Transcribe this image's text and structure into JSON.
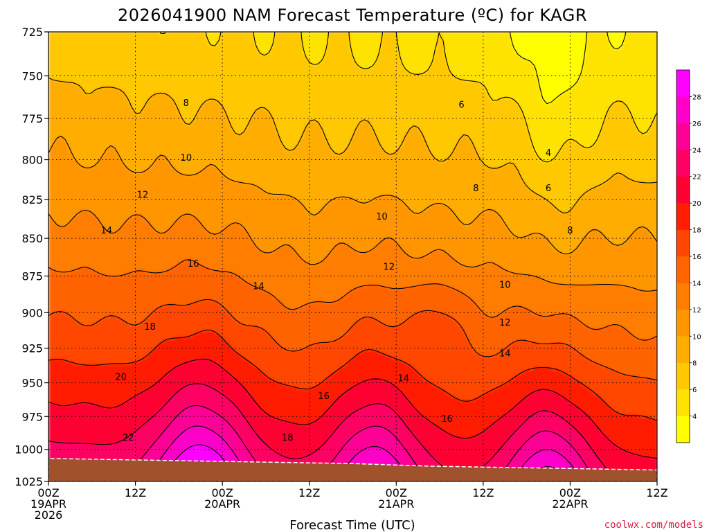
{
  "chart_data": {
    "type": "heatmap",
    "title": "2026041900 NAM Forecast Temperature (ºC) for KAGR",
    "xlabel": "Forecast Time (UTC)",
    "ylabel": "",
    "credit": "coolwx.com/models",
    "x_range_hours": [
      0,
      84
    ],
    "y_range_hpa": [
      725,
      1025
    ],
    "y_log": true,
    "grid": true,
    "x_ticks": [
      {
        "hour": 0,
        "line1": "00Z",
        "line2": "19APR",
        "line3": "2026"
      },
      {
        "hour": 12,
        "line1": "12Z",
        "line2": "",
        "line3": ""
      },
      {
        "hour": 24,
        "line1": "00Z",
        "line2": "20APR",
        "line3": ""
      },
      {
        "hour": 36,
        "line1": "12Z",
        "line2": "",
        "line3": ""
      },
      {
        "hour": 48,
        "line1": "00Z",
        "line2": "21APR",
        "line3": ""
      },
      {
        "hour": 60,
        "line1": "12Z",
        "line2": "",
        "line3": ""
      },
      {
        "hour": 72,
        "line1": "00Z",
        "line2": "22APR",
        "line3": ""
      },
      {
        "hour": 84,
        "line1": "12Z",
        "line2": "",
        "line3": ""
      }
    ],
    "y_ticks": [
      "725",
      "750",
      "775",
      "800",
      "825",
      "850",
      "875",
      "900",
      "925",
      "950",
      "975",
      "1000",
      "1025"
    ],
    "colorbar": {
      "levels": [
        2,
        4,
        6,
        8,
        10,
        12,
        14,
        16,
        18,
        20,
        22,
        24,
        26,
        28,
        30
      ],
      "labels": [
        "4",
        "6",
        "8",
        "10",
        "12",
        "14",
        "16",
        "18",
        "20",
        "22",
        "24",
        "26",
        "28"
      ],
      "colors": [
        "#ffff00",
        "#ffe300",
        "#ffc800",
        "#ffad00",
        "#ff9600",
        "#ff7d00",
        "#ff6400",
        "#ff4600",
        "#ff1e00",
        "#ff0032",
        "#ff0064",
        "#ff0096",
        "#ff00c8",
        "#ff00ff"
      ]
    },
    "terrain_color": "#a0522d",
    "surface_pressure_hpa": [
      1007,
      1008,
      1009,
      1010,
      1011,
      1013,
      1014,
      1015,
      1016
    ],
    "contour_labels": [
      {
        "text": "8",
        "hour": 19,
        "hpa": 766
      },
      {
        "text": "6",
        "hour": 57,
        "hpa": 767
      },
      {
        "text": "4",
        "hour": 69,
        "hpa": 796
      },
      {
        "text": "10",
        "hour": 19,
        "hpa": 799
      },
      {
        "text": "8",
        "hour": 59,
        "hpa": 818
      },
      {
        "text": "6",
        "hour": 69,
        "hpa": 818
      },
      {
        "text": "12",
        "hour": 13,
        "hpa": 822
      },
      {
        "text": "10",
        "hour": 46,
        "hpa": 836
      },
      {
        "text": "8",
        "hour": 72,
        "hpa": 845
      },
      {
        "text": "14",
        "hour": 8,
        "hpa": 845
      },
      {
        "text": "12",
        "hour": 47,
        "hpa": 869
      },
      {
        "text": "16",
        "hour": 20,
        "hpa": 867
      },
      {
        "text": "14",
        "hour": 29,
        "hpa": 882
      },
      {
        "text": "10",
        "hour": 63,
        "hpa": 881
      },
      {
        "text": "12",
        "hour": 63,
        "hpa": 907
      },
      {
        "text": "18",
        "hour": 14,
        "hpa": 910
      },
      {
        "text": "14",
        "hour": 63,
        "hpa": 929
      },
      {
        "text": "20",
        "hour": 10,
        "hpa": 946
      },
      {
        "text": "14",
        "hour": 49,
        "hpa": 947
      },
      {
        "text": "16",
        "hour": 38,
        "hpa": 960
      },
      {
        "text": "16",
        "hour": 55,
        "hpa": 977
      },
      {
        "text": "18",
        "hour": 33,
        "hpa": 991
      },
      {
        "text": "22",
        "hour": 11,
        "hpa": 991
      }
    ]
  }
}
